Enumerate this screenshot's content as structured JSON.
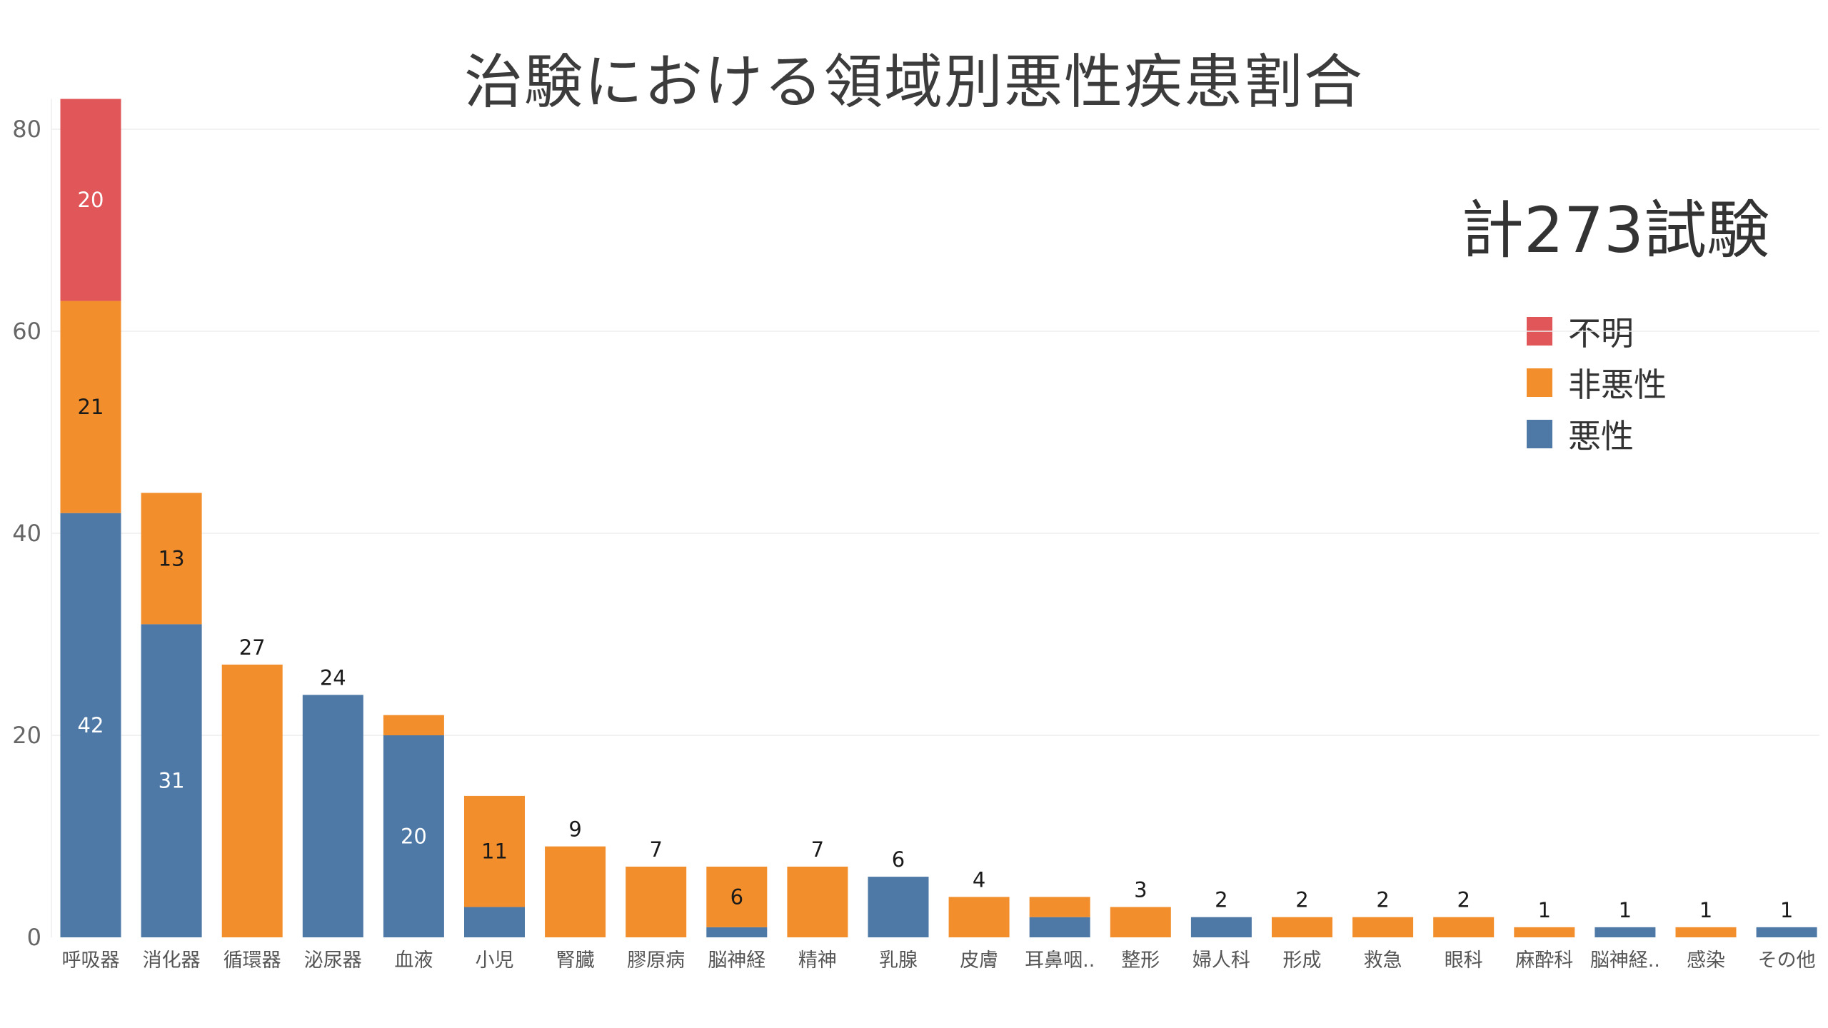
{
  "chart_data": {
    "type": "bar",
    "stacked": true,
    "title": "治験における領域別悪性疾患割合",
    "annotation": "計273試験",
    "categories": [
      "呼吸器",
      "消化器",
      "循環器",
      "泌尿器",
      "血液",
      "小児",
      "腎臓",
      "膠原病",
      "脳神経",
      "精神",
      "乳腺",
      "皮膚",
      "耳鼻咽..",
      "整形",
      "婦人科",
      "形成",
      "救急",
      "眼科",
      "麻酔科",
      "脳神経..",
      "感染",
      "その他"
    ],
    "series": [
      {
        "name": "悪性",
        "color": "#4e79a7",
        "values": [
          42,
          31,
          0,
          24,
          20,
          3,
          0,
          0,
          1,
          0,
          6,
          0,
          2,
          0,
          2,
          0,
          0,
          0,
          0,
          1,
          0,
          1
        ]
      },
      {
        "name": "非悪性",
        "color": "#f28e2b",
        "values": [
          21,
          13,
          27,
          0,
          2,
          11,
          9,
          7,
          6,
          7,
          0,
          4,
          2,
          3,
          0,
          2,
          2,
          2,
          1,
          0,
          1,
          0
        ]
      },
      {
        "name": "不明",
        "color": "#e15759",
        "values": [
          20,
          0,
          0,
          0,
          0,
          0,
          0,
          0,
          0,
          0,
          0,
          0,
          0,
          0,
          0,
          0,
          0,
          0,
          0,
          0,
          0,
          0
        ]
      }
    ],
    "legend_order": [
      "不明",
      "非悪性",
      "悪性"
    ],
    "data_labels": [
      {
        "category": "呼吸器",
        "series": "不明",
        "text": "20",
        "position": "inside",
        "color": "#ffffff"
      },
      {
        "category": "呼吸器",
        "series": "非悪性",
        "text": "21",
        "position": "inside",
        "color": "#1a1a1a"
      },
      {
        "category": "呼吸器",
        "series": "悪性",
        "text": "42",
        "position": "inside",
        "color": "#ffffff"
      },
      {
        "category": "消化器",
        "series": "非悪性",
        "text": "13",
        "position": "inside",
        "color": "#1a1a1a"
      },
      {
        "category": "消化器",
        "series": "悪性",
        "text": "31",
        "position": "inside",
        "color": "#ffffff"
      },
      {
        "category": "循環器",
        "text": "27",
        "position": "above",
        "color": "#1a1a1a"
      },
      {
        "category": "泌尿器",
        "text": "24",
        "position": "above",
        "color": "#1a1a1a"
      },
      {
        "category": "血液",
        "series": "悪性",
        "text": "20",
        "position": "inside",
        "color": "#ffffff"
      },
      {
        "category": "小児",
        "series": "非悪性",
        "text": "11",
        "position": "inside",
        "color": "#1a1a1a"
      },
      {
        "category": "腎臓",
        "text": "9",
        "position": "above",
        "color": "#1a1a1a"
      },
      {
        "category": "膠原病",
        "text": "7",
        "position": "above",
        "color": "#1a1a1a"
      },
      {
        "category": "脳神経",
        "series": "非悪性",
        "text": "6",
        "position": "inside",
        "color": "#1a1a1a"
      },
      {
        "category": "精神",
        "text": "7",
        "position": "above",
        "color": "#1a1a1a"
      },
      {
        "category": "乳腺",
        "text": "6",
        "position": "above",
        "color": "#1a1a1a"
      },
      {
        "category": "皮膚",
        "text": "4",
        "position": "above",
        "color": "#1a1a1a"
      },
      {
        "category": "整形",
        "text": "3",
        "position": "above",
        "color": "#1a1a1a"
      },
      {
        "category": "婦人科",
        "text": "2",
        "position": "above",
        "color": "#1a1a1a"
      },
      {
        "category": "形成",
        "text": "2",
        "position": "above",
        "color": "#1a1a1a"
      },
      {
        "category": "救急",
        "text": "2",
        "position": "above",
        "color": "#1a1a1a"
      },
      {
        "category": "眼科",
        "text": "2",
        "position": "above",
        "color": "#1a1a1a"
      },
      {
        "category": "麻酔科",
        "text": "1",
        "position": "above",
        "color": "#1a1a1a"
      },
      {
        "category": "脳神経..",
        "text": "1",
        "position": "above",
        "color": "#1a1a1a"
      },
      {
        "category": "感染",
        "text": "1",
        "position": "above",
        "color": "#1a1a1a"
      },
      {
        "category": "その他",
        "text": "1",
        "position": "above",
        "color": "#1a1a1a"
      }
    ],
    "ylim": [
      0,
      83
    ],
    "yticks": [
      0,
      20,
      40,
      60,
      80
    ],
    "xlabel": "",
    "ylabel": "",
    "grid": true,
    "legend_position": "right"
  }
}
